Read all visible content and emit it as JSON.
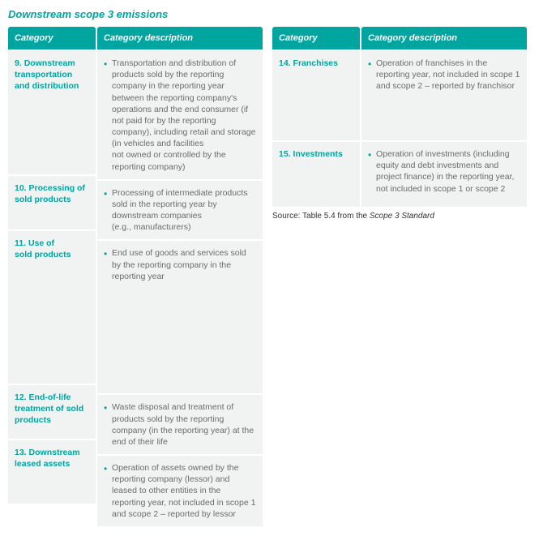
{
  "title": "Downstream scope 3 emissions",
  "colors": {
    "accent": "#00a5a0",
    "cell_bg": "#f1f2f2",
    "text": "#6b6b6b",
    "page_bg": "#ffffff"
  },
  "headers": {
    "category": "Category",
    "description": "Category description"
  },
  "left": [
    {
      "num": "9.",
      "name": "Downstream transportation and distribution",
      "desc": "Transportation and distribution of products sold by the reporting company in the reporting year between the reporting company's operations and the end consumer (if not paid for by the reporting company), including retail and storage  (in vehicles and facilities\nnot owned or controlled by the reporting company)",
      "hclass": "h9"
    },
    {
      "num": "10.",
      "name": "Processing of sold products",
      "desc": "Processing of intermediate products sold in the reporting year by downstream companies\n(e.g., manufacturers)",
      "hclass": "h10"
    },
    {
      "num": "11.",
      "name": "Use of\nsold products",
      "desc": "End use of goods and services sold by the reporting company in the reporting year",
      "hclass": "h11"
    },
    {
      "num": "12.",
      "name": "End-of-life treatment of sold products",
      "desc": "Waste disposal and treatment of products sold by the reporting company (in the reporting year) at the end of their life",
      "hclass": "h12"
    },
    {
      "num": "13.",
      "name": "Downstream leased assets",
      "desc": "Operation of assets owned by the reporting company (lessor) and leased to other entities in the reporting year, not included in scope 1 and scope 2 – reported by lessor",
      "hclass": "h13"
    }
  ],
  "right": [
    {
      "num": "14.",
      "name": "Franchises",
      "desc": "Operation of franchises in the reporting year, not included in scope 1 and scope 2 – reported by franchisor",
      "hclass": "h14"
    },
    {
      "num": "15.",
      "name": "Investments",
      "desc": "Operation of investments (including equity and debt investments and project finance) in the reporting year, not included in scope 1 or scope 2",
      "hclass": "h15"
    }
  ],
  "source": {
    "prefix": "Source: Table 5.4 from the ",
    "italic": "Scope 3 Standard"
  }
}
